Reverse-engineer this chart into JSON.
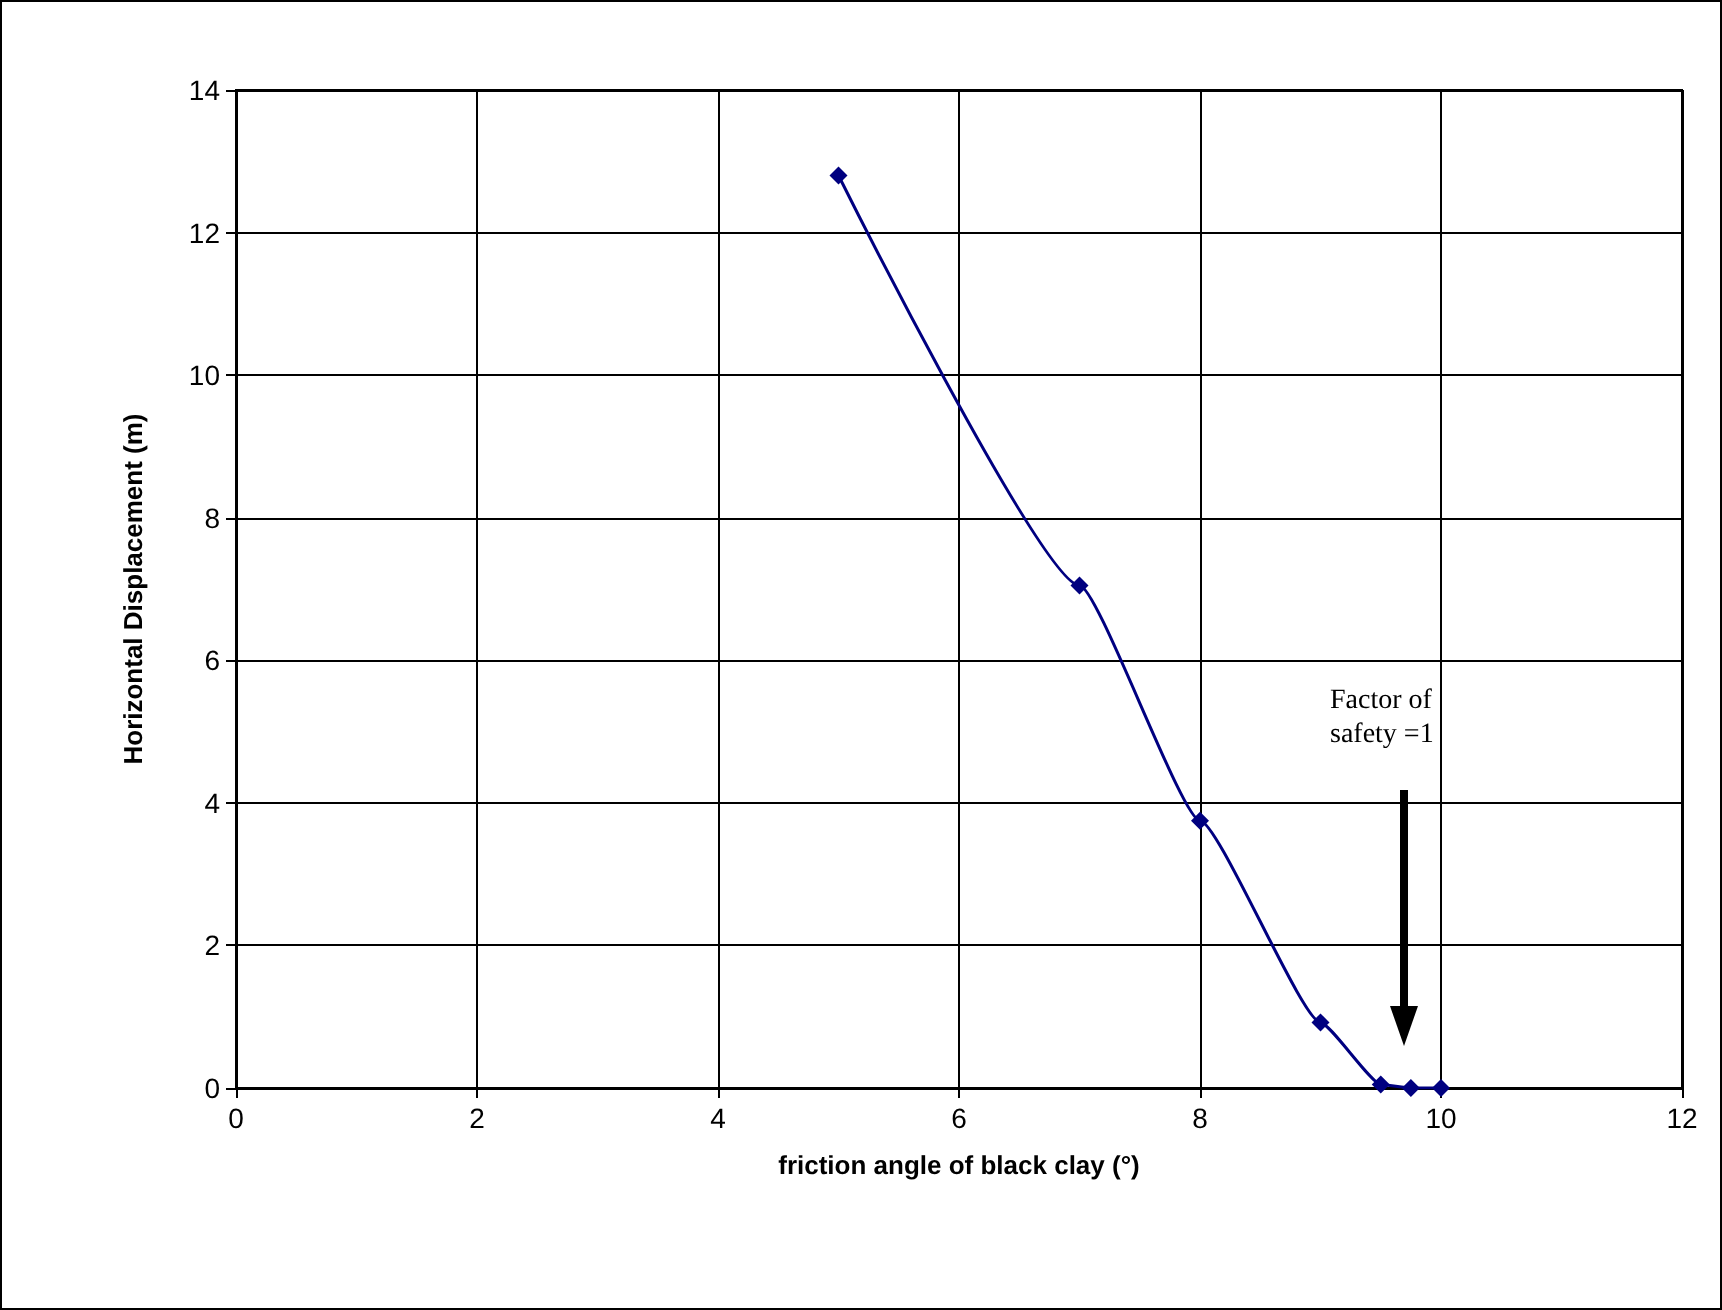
{
  "chart_data": {
    "type": "line",
    "xlabel": "friction angle of black clay (°)",
    "ylabel": "Horizontal Displacement (m)",
    "x": [
      5,
      7,
      8,
      9,
      9.5,
      9.75,
      10
    ],
    "series": [
      {
        "color": "#000080",
        "values": [
          12.8,
          7.05,
          3.75,
          0.92,
          0.05,
          0,
          0
        ]
      }
    ],
    "xlim": [
      0,
      12
    ],
    "xticks": [
      0,
      2,
      4,
      6,
      8,
      10,
      12
    ],
    "ylim": [
      0,
      14
    ],
    "yticks": [
      0,
      2,
      4,
      6,
      8,
      10,
      12,
      14
    ],
    "grid": true,
    "marker": "diamond",
    "line_style": "solid",
    "annotations": [
      "Factor of safety =1"
    ]
  }
}
